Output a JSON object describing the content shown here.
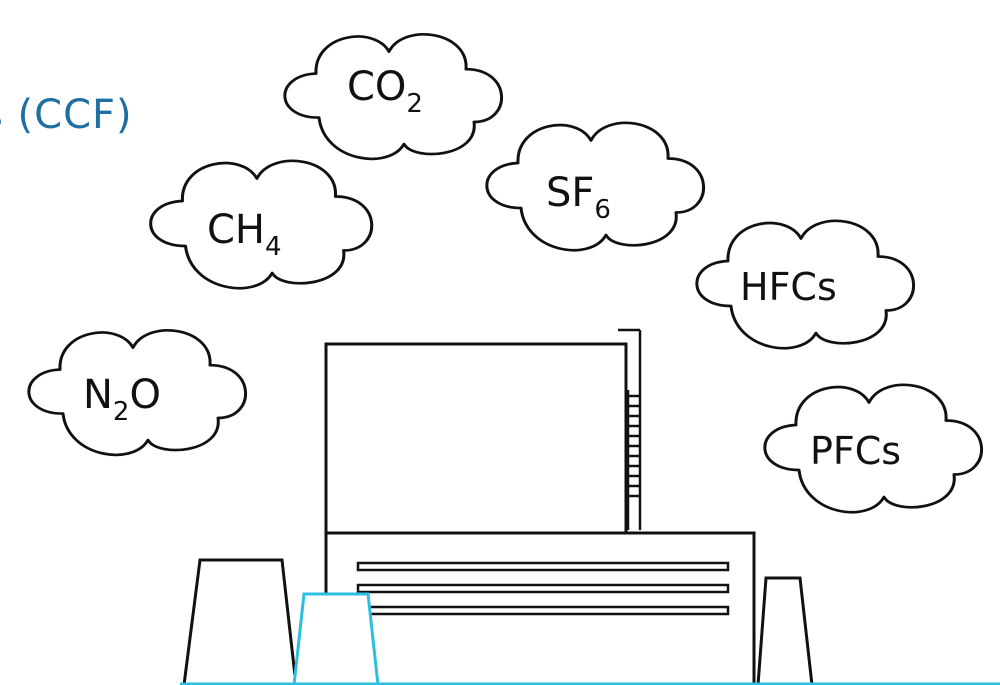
{
  "title_fragment": "s (CCF)",
  "gases": [
    {
      "id": "co2",
      "base": "CO",
      "sub": "2",
      "tail": ""
    },
    {
      "id": "ch4",
      "base": "CH",
      "sub": "4",
      "tail": ""
    },
    {
      "id": "sf6",
      "base": "SF",
      "sub": "6",
      "tail": ""
    },
    {
      "id": "hfcs",
      "base": "HFCs",
      "sub": "",
      "tail": ""
    },
    {
      "id": "n2o",
      "base": "N",
      "sub": "2",
      "tail": "O"
    },
    {
      "id": "pfcs",
      "base": "PFCs",
      "sub": "",
      "tail": ""
    }
  ],
  "colors": {
    "outline": "#111111",
    "accent": "#2bbfe0",
    "accent_dark": "#1f6fa3"
  }
}
